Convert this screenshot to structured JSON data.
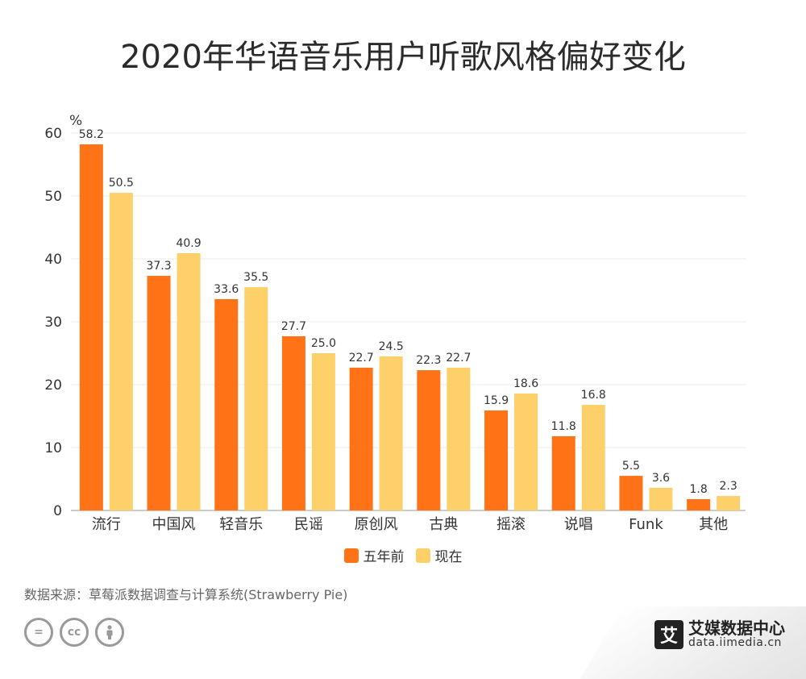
{
  "chart_data": {
    "type": "bar",
    "title": "2020年华语音乐用户听歌风格偏好变化",
    "ylabel": "%",
    "ylim": [
      0,
      60
    ],
    "yticks": [
      0,
      10,
      20,
      30,
      40,
      50,
      60
    ],
    "grid": true,
    "legend_position": "bottom",
    "categories": [
      "流行",
      "中国风",
      "轻音乐",
      "民谣",
      "原创风",
      "古典",
      "摇滚",
      "说唱",
      "Funk",
      "其他"
    ],
    "series": [
      {
        "name": "五年前",
        "color": "#ff7316",
        "values": [
          58.2,
          37.3,
          33.6,
          27.7,
          22.7,
          22.3,
          15.9,
          11.8,
          5.5,
          1.8
        ]
      },
      {
        "name": "现在",
        "color": "#fdd06a",
        "values": [
          50.5,
          40.9,
          35.5,
          25.0,
          24.5,
          22.7,
          18.6,
          16.8,
          3.6,
          2.3
        ]
      }
    ]
  },
  "source": "数据来源：草莓派数据调查与计算系统(Strawberry Pie)",
  "cc_icons": [
    "equals-icon",
    "cc-icon",
    "person-icon"
  ],
  "brand": {
    "name": "艾媒数据中心",
    "url": "data.iimedia.cn",
    "logo_glyph": "艾"
  }
}
